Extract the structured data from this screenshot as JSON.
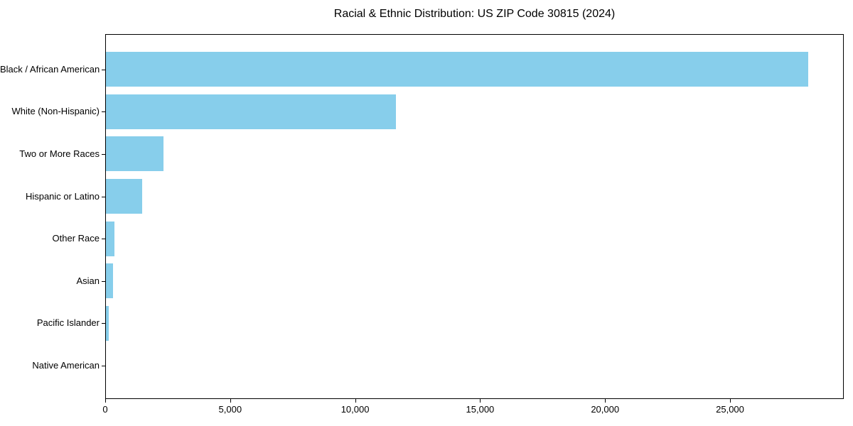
{
  "chart_data": {
    "type": "bar",
    "orientation": "horizontal",
    "title": "Racial & Ethnic Distribution: US ZIP Code 30815 (2024)",
    "categories": [
      "Black / African American",
      "White (Non-Hispanic)",
      "Two or More Races",
      "Hispanic or Latino",
      "Other Race",
      "Asian",
      "Pacific Islander",
      "Native American"
    ],
    "values": [
      28100,
      11600,
      2300,
      1450,
      340,
      275,
      120,
      0
    ],
    "xlabel": "",
    "ylabel": "",
    "xlim": [
      0,
      29550
    ],
    "x_ticks": [
      0,
      5000,
      10000,
      15000,
      20000,
      25000
    ],
    "x_tick_labels": [
      "0",
      "5,000",
      "10,000",
      "15,000",
      "20,000",
      "25,000"
    ],
    "bar_color": "#87CEEB",
    "axis_color": "#000000",
    "background_color": "#ffffff",
    "grid": false,
    "legend": null
  }
}
